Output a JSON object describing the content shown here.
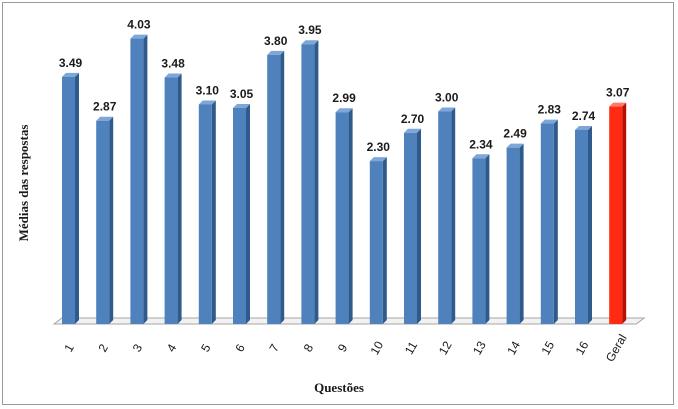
{
  "chart_data": {
    "type": "bar",
    "xlabel": "Questões",
    "ylabel": "Médias das respostas",
    "categories": [
      "1",
      "2",
      "3",
      "4",
      "5",
      "6",
      "7",
      "8",
      "9",
      "10",
      "11",
      "12",
      "13",
      "14",
      "15",
      "16",
      "Geral"
    ],
    "values": [
      3.49,
      2.87,
      4.03,
      3.48,
      3.1,
      3.05,
      3.8,
      3.95,
      2.99,
      2.3,
      2.7,
      3.0,
      2.34,
      2.49,
      2.83,
      2.74,
      3.07
    ],
    "value_labels": [
      "3.49",
      "2.87",
      "4.03",
      "3.48",
      "3.10",
      "3.05",
      "3.80",
      "3.95",
      "2.99",
      "2.30",
      "2.70",
      "3.00",
      "2.34",
      "2.49",
      "2.83",
      "2.74",
      "3.07"
    ],
    "ylim": [
      0,
      4.25
    ],
    "grid": false,
    "legend": "none",
    "colors": {
      "bar_front": "#4f81bd",
      "bar_side": "#2e5a8c",
      "bar_top": "#7ea6d8",
      "highlight_front": "#ff2a12",
      "highlight_side": "#b81000",
      "highlight_top": "#ff7a66",
      "floor": "#f2f2f2",
      "floor_edge": "#a6a6a6"
    },
    "highlight_category": "Geral"
  }
}
